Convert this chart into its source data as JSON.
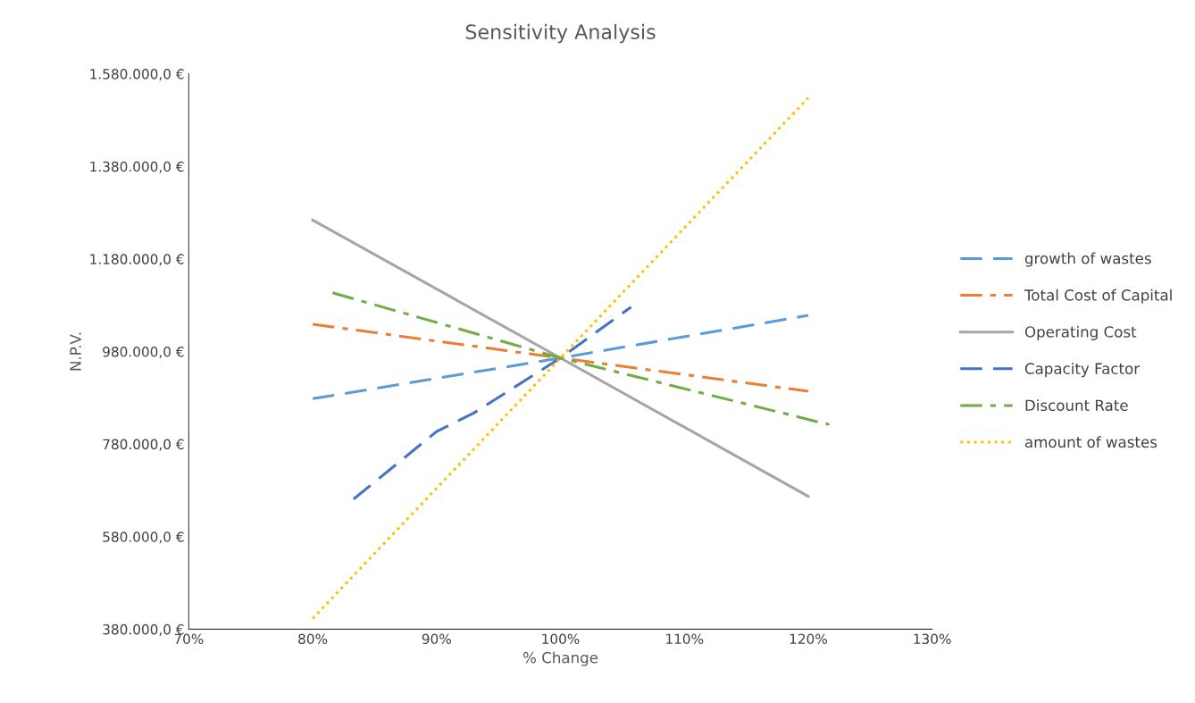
{
  "chart_data": {
    "type": "line",
    "title": "Sensitivity Analysis",
    "xlabel": "% Change",
    "ylabel": "N.P.V.",
    "xlim": [
      70,
      130
    ],
    "xticks": [
      {
        "value": 70,
        "label": "70%"
      },
      {
        "value": 80,
        "label": "80%"
      },
      {
        "value": 90,
        "label": "90%"
      },
      {
        "value": 100,
        "label": "100%"
      },
      {
        "value": 110,
        "label": "110%"
      },
      {
        "value": 120,
        "label": "120%"
      },
      {
        "value": 130,
        "label": "130%"
      }
    ],
    "ylim": [
      380000,
      1580000
    ],
    "yticks": [
      {
        "value": 380000,
        "label": "380.000,0 €"
      },
      {
        "value": 580000,
        "label": "580.000,0 €"
      },
      {
        "value": 780000,
        "label": "780.000,0 €"
      },
      {
        "value": 980000,
        "label": "980.000,0 €"
      },
      {
        "value": 1180000,
        "label": "1.180.000,0 €"
      },
      {
        "value": 1380000,
        "label": "1.380.000,0 €"
      },
      {
        "value": 1580000,
        "label": "1.580.000,0 €"
      }
    ],
    "grid": false,
    "legend": "right",
    "marker": "none",
    "series": [
      {
        "name": "growth of wastes",
        "color": "#5b9bd5",
        "line_style": "dashed",
        "x": [
          80,
          100,
          120
        ],
        "values": [
          878000,
          966000,
          1058000
        ]
      },
      {
        "name": "Total Cost of Capital",
        "color": "#ed7d31",
        "line_style": "dashdot",
        "x": [
          80,
          100,
          120
        ],
        "values": [
          1039000,
          966000,
          894000
        ]
      },
      {
        "name": "Operating Cost",
        "color": "#a5a5a5",
        "line_style": "solid",
        "x": [
          80,
          100,
          120
        ],
        "values": [
          1264000,
          966000,
          667000
        ]
      },
      {
        "name": "Capacity Factor",
        "color": "#4472c4",
        "line_style": "dashed",
        "x": [
          83.3,
          90,
          93,
          100,
          105.7
        ],
        "values": [
          661000,
          807000,
          847000,
          966000,
          1076000
        ]
      },
      {
        "name": "Discount Rate",
        "color": "#70ad47",
        "line_style": "dashdot",
        "x": [
          81.6,
          100,
          121.7
        ],
        "values": [
          1107000,
          966000,
          822000
        ]
      },
      {
        "name": "amount of wastes",
        "color": "#ffc000",
        "line_style": "dotted",
        "x": [
          80,
          100,
          120
        ],
        "values": [
          403000,
          966000,
          1528000
        ]
      }
    ]
  }
}
